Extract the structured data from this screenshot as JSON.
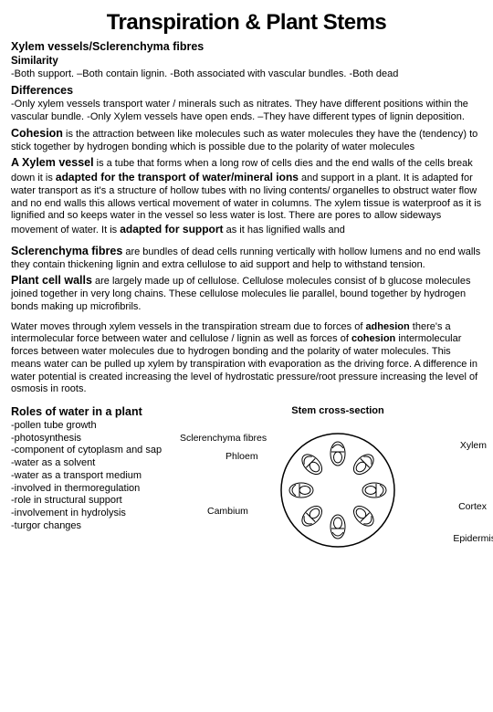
{
  "title": "Transpiration & Plant Stems",
  "heading_vessels": "Xylem vessels/Sclerenchyma fibres",
  "similarity_label": "Similarity",
  "similarity_text": "-Both support. –Both contain lignin. -Both associated with vascular bundles. -Both dead",
  "differences_label": "Differences",
  "differences_text": "-Only xylem vessels transport water / minerals such as nitrates. They have different positions within the vascular bundle. -Only Xylem vessels have open ends. –They have different types of lignin deposition.",
  "cohesion_label": "Cohesion",
  "cohesion_text": " is the attraction between like molecules such as water molecules they have the (tendency) to stick together by hydrogen bonding which is possible due to the polarity of water molecules",
  "xylem_label": "A Xylem vessel",
  "xylem_t1": " is a tube that forms when a long row of cells dies and the end walls of the cells break down it is ",
  "xylem_bold1": "adapted for the transport of water/mineral ions",
  "xylem_t2": " and support in a plant. It is adapted for water transport as it's a structure of hollow tubes with no living contents/ organelles to obstruct water flow and no end walls this allows vertical movement of water in columns. The xylem tissue is waterproof as it is lignified and so keeps water in the vessel so less water is lost. There are pores to allow sideways movement of water. It is ",
  "xylem_bold2": "adapted for support",
  "xylem_t3": " as it has lignified walls and",
  "scler_label": "Sclerenchyma fibres",
  "scler_text": "  are bundles of dead cells running vertically with hollow lumens and no end walls they contain thickening lignin and extra cellulose to aid support and help to withstand tension.",
  "cellwalls_label": "Plant cell walls",
  "cellwalls_text": " are largely made up of cellulose. Cellulose molecules consist of b glucose molecules joined together in very long chains. These cellulose molecules lie parallel, bound together by hydrogen bonds making up microfibrils.",
  "water_t1": "Water moves through xylem vessels in the transpiration stream due to forces of ",
  "water_b1": "adhesion",
  "water_t2": " there's a intermolecular force between water and cellulose / lignin as well as forces of ",
  "water_b2": "cohesion",
  "water_t3": " intermolecular forces between water molecules due to hydrogen bonding and the polarity of water molecules. This means water can be pulled up xylem by transpiration with evaporation as the driving force. A difference in water potential is created increasing the level of hydrostatic pressure/root pressure increasing the level of osmosis in roots.",
  "roles_title": "Roles of water in a plant",
  "roles": {
    "r0": "-pollen tube growth",
    "r1": "-photosynthesis",
    "r2": "-component of cytoplasm and sap",
    "r3": "-water as a solvent",
    "r4": "-water as a transport medium",
    "r5": "-involved in thermoregulation",
    "r6": "-role in structural support",
    "r7": "-involvement in hydrolysis",
    "r8": "-turgor changes"
  },
  "diagram": {
    "title": "Stem cross-section",
    "labels": {
      "sclerenchyma": "Sclerenchyma fibres",
      "phloem": "Phloem",
      "cambium": "Cambium",
      "xylem": "Xylem",
      "cortex": "Cortex",
      "epidermis": "Epidermis"
    },
    "style": {
      "outer_stroke": "#000000",
      "bundle_stroke": "#000000",
      "fill": "#ffffff",
      "circle_r": 62,
      "bundle_count": 8,
      "bundle_radius_from_center": 40,
      "svg_size": 150
    }
  }
}
